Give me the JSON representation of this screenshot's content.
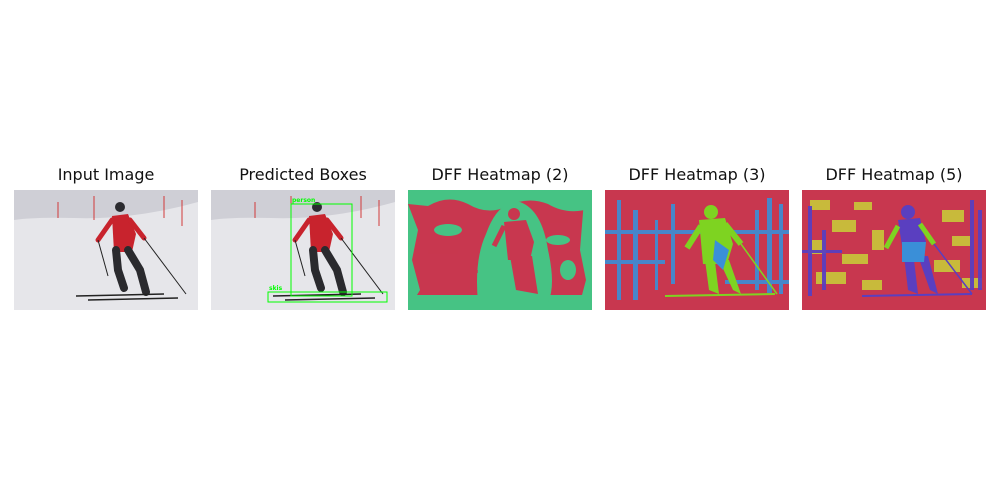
{
  "panels": [
    {
      "title": "Input Image",
      "kind": "photo"
    },
    {
      "title": "Predicted Boxes",
      "kind": "boxes",
      "detections": [
        {
          "label": "person",
          "color": "#00ff00"
        },
        {
          "label": "skis",
          "color": "#00ff00"
        }
      ]
    },
    {
      "title": "DFF Heatmap (2)",
      "kind": "heatmap2"
    },
    {
      "title": "DFF Heatmap (3)",
      "kind": "heatmap3"
    },
    {
      "title": "DFF Heatmap (5)",
      "kind": "heatmap5"
    }
  ],
  "colors": {
    "snow": "#e6e6ea",
    "sky": "#d2d2d8",
    "jacket": "#c8232d",
    "pants": "#2a2a2e",
    "box": "#00ff00",
    "heat_red": "#c8374f",
    "heat_green": "#39d38a",
    "heat_blue": "#3a8fd8",
    "heat_lime": "#7ed321",
    "heat_yellow": "#c9c23a",
    "heat_purple": "#5a3fc0"
  }
}
